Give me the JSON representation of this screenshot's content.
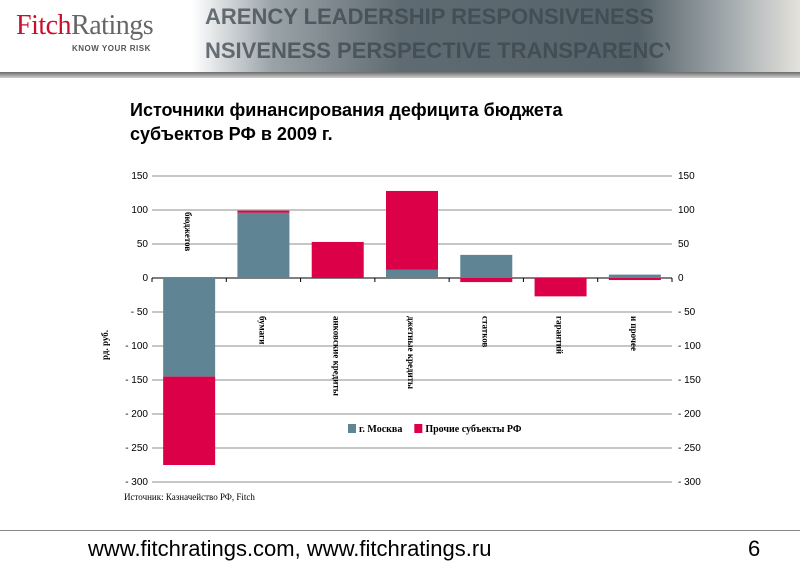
{
  "header": {
    "logo_fitch": "Fitch",
    "logo_ratings": "Ratings",
    "tagline": "KNOW YOUR RISK",
    "banner_line1": "ARENCY LEADERSHIP RESPONSIVENESS",
    "banner_line2": "NSIVENESS PERSPECTIVE TRANSPARENCY"
  },
  "slide": {
    "title_line1": "Источники финансирования дефицита бюджета",
    "title_line2": "субъектов РФ в 2009 г.",
    "footer": "www.fitchratings.com, www.fitchratings.ru",
    "page_number": "6"
  },
  "chart_data": {
    "type": "bar",
    "stacked": true,
    "title": "",
    "ylabel": "рд. руб.",
    "ylim": [
      -300,
      150
    ],
    "yticks": [
      150,
      100,
      50,
      0,
      -50,
      -100,
      -150,
      -200,
      -250,
      -300
    ],
    "ytick_labels": [
      "150",
      "100",
      "50",
      "0",
      "- 50",
      "- 100",
      "- 150",
      "- 200",
      "- 250",
      "- 300"
    ],
    "secondary_axis": true,
    "grid": true,
    "legend_placement": "inside-bottom-center",
    "categories": [
      "бюджетов",
      "бумаги",
      "анковские кредиты",
      "джетные кредиты",
      "статков",
      "гарантий",
      "и прочее"
    ],
    "series": [
      {
        "name": "г. Москва",
        "color": "#5f8494",
        "values": [
          -145,
          96,
          0,
          12,
          34,
          0,
          5
        ]
      },
      {
        "name": "Прочие субъекты РФ",
        "color": "#dc0048",
        "values": [
          -130,
          3,
          53,
          116,
          -6,
          -27,
          -3
        ]
      }
    ],
    "source": "Источник: Казначейство РФ, Fitch"
  }
}
